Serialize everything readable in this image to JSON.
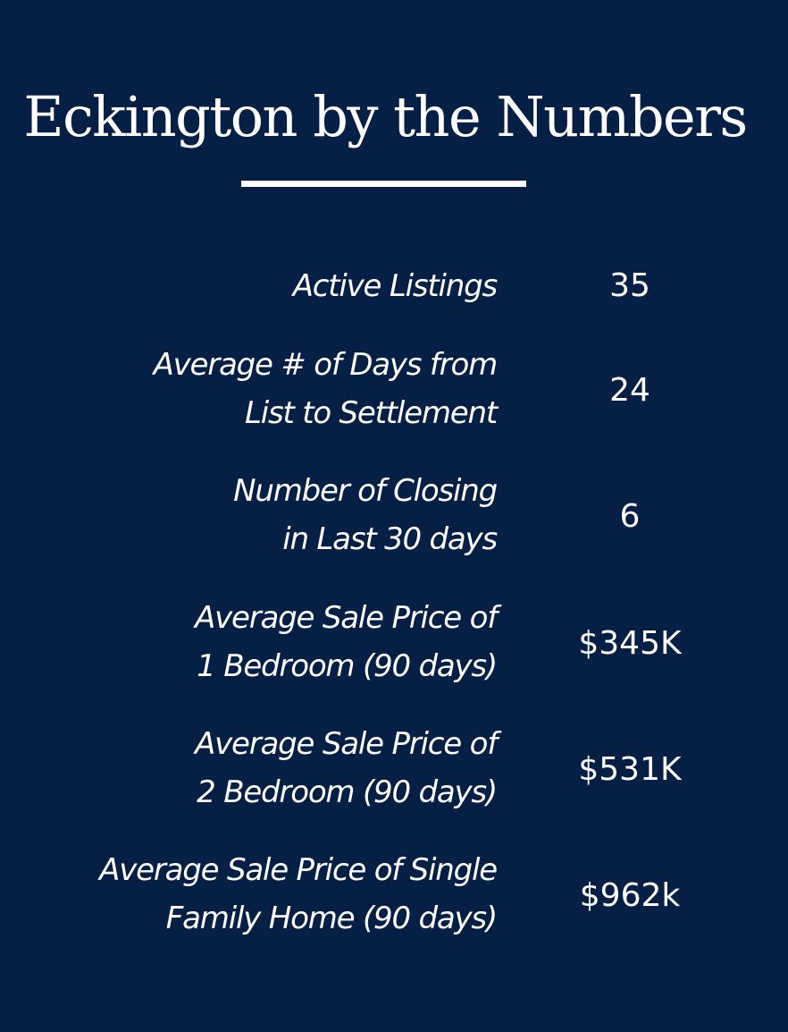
{
  "title": "Eckington by the Numbers",
  "colors": {
    "background": "#061f45",
    "text": "#ffffff"
  },
  "stats": [
    {
      "label_lines": [
        "Active Listings"
      ],
      "value": "35"
    },
    {
      "label_lines": [
        "Average # of Days from",
        "List to Settlement"
      ],
      "value": "24"
    },
    {
      "label_lines": [
        "Number of Closing",
        "in Last 30 days"
      ],
      "value": "6"
    },
    {
      "label_lines": [
        "Average Sale Price of",
        "1 Bedroom (90 days)"
      ],
      "value": "$345K"
    },
    {
      "label_lines": [
        "Average Sale Price of",
        "2 Bedroom (90 days)"
      ],
      "value": "$531K"
    },
    {
      "label_lines": [
        "Average Sale Price of Single",
        "Family Home (90 days)"
      ],
      "value": "$962k"
    }
  ]
}
